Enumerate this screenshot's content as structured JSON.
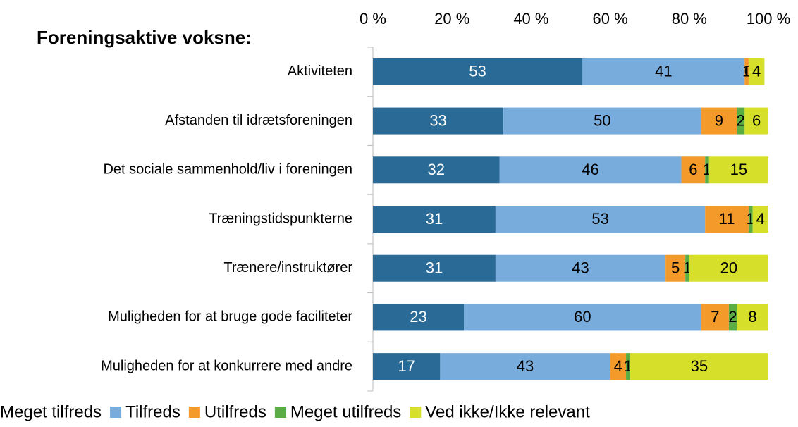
{
  "chart_data": {
    "type": "stacked_barh",
    "title": "Foreningsaktive voksne:",
    "categories": [
      "Aktiviteten",
      "Afstanden til idrætsforeningen",
      "Det sociale sammenhold/liv i foreningen",
      "Træningstidspunkterne",
      "Trænere/instruktører",
      "Muligheden for at bruge gode faciliteter",
      "Muligheden for at konkurrere med andre"
    ],
    "series": [
      {
        "name": "Meget tilfreds",
        "color": "#2a6a96",
        "values": [
          53,
          33,
          32,
          31,
          31,
          23,
          17
        ]
      },
      {
        "name": "Tilfreds",
        "color": "#78acdc",
        "values": [
          41,
          50,
          46,
          53,
          43,
          60,
          43
        ]
      },
      {
        "name": "Utilfreds",
        "color": "#f39a2a",
        "values": [
          1,
          9,
          6,
          11,
          5,
          7,
          4
        ]
      },
      {
        "name": "Meget utilfreds",
        "color": "#5aad44",
        "values": [
          0,
          2,
          1,
          1,
          1,
          2,
          1
        ]
      },
      {
        "name": "Ved ikke/Ikke relevant",
        "color": "#d6e02a",
        "values": [
          4,
          6,
          15,
          4,
          20,
          8,
          35
        ]
      }
    ],
    "xlim": [
      0,
      100
    ],
    "xticks": [
      {
        "value": 0,
        "label": "0 %"
      },
      {
        "value": 20,
        "label": "20 %"
      },
      {
        "value": 40,
        "label": "40 %"
      },
      {
        "value": 60,
        "label": "60 %"
      },
      {
        "value": 80,
        "label": "80 %"
      },
      {
        "value": 100,
        "label": "100 %"
      }
    ],
    "grid": false,
    "legend": "bottom"
  }
}
